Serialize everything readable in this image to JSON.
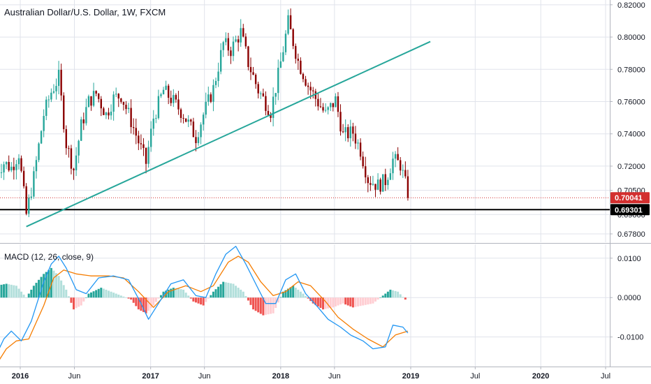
{
  "chart_data": [
    {
      "type": "candlestick",
      "title": "Australian Dollar/U.S. Dollar, 1W, FXCM",
      "ylim": [
        0.6754,
        0.8208
      ],
      "yticks": [
        {
          "value": 0.82,
          "label": "0.82000"
        },
        {
          "value": 0.8,
          "label": "0.80000"
        },
        {
          "value": 0.78,
          "label": "0.78000"
        },
        {
          "value": 0.76,
          "label": "0.76000"
        },
        {
          "value": 0.74,
          "label": "0.74000"
        },
        {
          "value": 0.72,
          "label": "0.72000"
        },
        {
          "value": 0.705,
          "label": "0.70500"
        },
        {
          "value": 0.69,
          "label": "0.69000"
        },
        {
          "value": 0.678,
          "label": "0.67800"
        }
      ],
      "xticks": [
        {
          "date": "2016-01-01",
          "label": "2016"
        },
        {
          "date": "2016-06-01",
          "label": "Jun"
        },
        {
          "date": "2017-01-01",
          "label": "2017"
        },
        {
          "date": "2017-06-01",
          "label": "Jun"
        },
        {
          "date": "2018-01-01",
          "label": "2018"
        },
        {
          "date": "2018-06-01",
          "label": "Jun"
        },
        {
          "date": "2019-01-01",
          "label": "2019"
        },
        {
          "date": "2019-07-01",
          "label": "Jul"
        },
        {
          "date": "2020-01-01",
          "label": "2020"
        },
        {
          "date": "2020-07-01",
          "label": "Jul"
        }
      ],
      "close_path": [
        [
          "2015-10-26",
          0.717
        ],
        [
          "2015-11-16",
          0.722
        ],
        [
          "2015-12-07",
          0.719
        ],
        [
          "2015-12-28",
          0.728
        ],
        [
          "2016-01-18",
          0.69
        ],
        [
          "2016-02-08",
          0.713
        ],
        [
          "2016-03-07",
          0.752
        ],
        [
          "2016-03-28",
          0.766
        ],
        [
          "2016-04-18",
          0.775
        ],
        [
          "2016-05-09",
          0.734
        ],
        [
          "2016-05-30",
          0.718
        ],
        [
          "2016-06-20",
          0.745
        ],
        [
          "2016-07-11",
          0.76
        ],
        [
          "2016-08-01",
          0.765
        ],
        [
          "2016-08-29",
          0.752
        ],
        [
          "2016-09-19",
          0.762
        ],
        [
          "2016-10-10",
          0.764
        ],
        [
          "2016-11-07",
          0.748
        ],
        [
          "2016-11-28",
          0.735
        ],
        [
          "2016-12-19",
          0.722
        ],
        [
          "2017-01-09",
          0.75
        ],
        [
          "2017-02-06",
          0.767
        ],
        [
          "2017-03-06",
          0.76
        ],
        [
          "2017-04-03",
          0.752
        ],
        [
          "2017-05-08",
          0.738
        ],
        [
          "2017-05-29",
          0.752
        ],
        [
          "2017-06-26",
          0.768
        ],
        [
          "2017-07-24",
          0.796
        ],
        [
          "2017-08-14",
          0.792
        ],
        [
          "2017-09-11",
          0.803
        ],
        [
          "2017-10-02",
          0.784
        ],
        [
          "2017-10-30",
          0.767
        ],
        [
          "2017-12-04",
          0.754
        ],
        [
          "2017-12-25",
          0.776
        ],
        [
          "2018-01-22",
          0.809
        ],
        [
          "2018-02-19",
          0.785
        ],
        [
          "2018-03-19",
          0.77
        ],
        [
          "2018-04-09",
          0.762
        ],
        [
          "2018-05-07",
          0.752
        ],
        [
          "2018-06-04",
          0.761
        ],
        [
          "2018-06-25",
          0.739
        ],
        [
          "2018-07-23",
          0.741
        ],
        [
          "2018-08-13",
          0.73
        ],
        [
          "2018-09-03",
          0.712
        ],
        [
          "2018-10-01",
          0.708
        ],
        [
          "2018-10-22",
          0.711
        ],
        [
          "2018-11-12",
          0.724
        ],
        [
          "2018-12-03",
          0.721
        ],
        [
          "2018-12-17",
          0.709
        ],
        [
          "2018-12-24",
          0.7004
        ]
      ],
      "series": [
        {
          "name": "trendline",
          "points": [
            [
              "2016-01-18",
              0.6825
            ],
            [
              "2019-02-25",
              0.7972
            ]
          ]
        }
      ],
      "horizontal_lines": [
        {
          "value": 0.70041,
          "label": "0.70041",
          "color": "#d32f2f",
          "style": "dotted"
        },
        {
          "value": 0.69301,
          "label": "0.69301",
          "color": "#000000",
          "style": "solid"
        }
      ],
      "colors": {
        "up": "#26a69a",
        "down": "#8b0000",
        "trend": "#26a69a",
        "grid": "#e0e3eb"
      }
    },
    {
      "type": "macd",
      "title": "MACD (12, 26, close, 9)",
      "ylim": [
        -0.0175,
        0.0135
      ],
      "yticks": [
        {
          "value": 0.01,
          "label": "0.0100"
        },
        {
          "value": 0.0,
          "label": "0.0000"
        },
        {
          "value": -0.01,
          "label": "-0.0100"
        }
      ],
      "series": [
        {
          "name": "MACD",
          "color": "#2196f3",
          "points": [
            [
              "2015-10-26",
              -0.0145
            ],
            [
              "2015-11-16",
              -0.0105
            ],
            [
              "2015-12-07",
              -0.0085
            ],
            [
              "2016-01-04",
              -0.011
            ],
            [
              "2016-02-01",
              -0.006
            ],
            [
              "2016-03-07",
              0.004
            ],
            [
              "2016-03-28",
              0.0085
            ],
            [
              "2016-04-18",
              0.0105
            ],
            [
              "2016-05-09",
              0.0075
            ],
            [
              "2016-06-06",
              0.002
            ],
            [
              "2016-07-04",
              0.001
            ],
            [
              "2016-08-08",
              0.005
            ],
            [
              "2016-09-19",
              0.0055
            ],
            [
              "2016-10-31",
              0.0045
            ],
            [
              "2016-12-05",
              -0.0015
            ],
            [
              "2016-12-26",
              -0.0055
            ],
            [
              "2017-01-23",
              -0.0015
            ],
            [
              "2017-02-27",
              0.0035
            ],
            [
              "2017-04-03",
              0.0045
            ],
            [
              "2017-05-08",
              0.0005
            ],
            [
              "2017-06-05",
              0.0
            ],
            [
              "2017-07-03",
              0.006
            ],
            [
              "2017-07-31",
              0.011
            ],
            [
              "2017-08-28",
              0.013
            ],
            [
              "2017-09-25",
              0.0085
            ],
            [
              "2017-10-23",
              0.0035
            ],
            [
              "2017-11-20",
              -0.0015
            ],
            [
              "2017-12-18",
              -0.0015
            ],
            [
              "2018-01-15",
              0.0045
            ],
            [
              "2018-02-12",
              0.006
            ],
            [
              "2018-03-12",
              0.001
            ],
            [
              "2018-04-16",
              -0.0025
            ],
            [
              "2018-05-14",
              -0.0055
            ],
            [
              "2018-06-18",
              -0.0075
            ],
            [
              "2018-07-16",
              -0.0095
            ],
            [
              "2018-08-20",
              -0.011
            ],
            [
              "2018-09-17",
              -0.013
            ],
            [
              "2018-10-22",
              -0.0125
            ],
            [
              "2018-11-12",
              -0.007
            ],
            [
              "2018-12-10",
              -0.0075
            ],
            [
              "2018-12-24",
              -0.009
            ]
          ]
        },
        {
          "name": "Signal",
          "color": "#f57c00",
          "points": [
            [
              "2015-10-26",
              -0.017
            ],
            [
              "2015-11-23",
              -0.013
            ],
            [
              "2015-12-21",
              -0.011
            ],
            [
              "2016-01-25",
              -0.0105
            ],
            [
              "2016-03-07",
              -0.002
            ],
            [
              "2016-04-04",
              0.005
            ],
            [
              "2016-05-02",
              0.007
            ],
            [
              "2016-06-06",
              0.006
            ],
            [
              "2016-07-18",
              0.0055
            ],
            [
              "2016-09-05",
              0.0055
            ],
            [
              "2016-10-17",
              0.005
            ],
            [
              "2016-11-28",
              0.0015
            ],
            [
              "2017-01-09",
              -0.0025
            ],
            [
              "2017-02-20",
              0.0015
            ],
            [
              "2017-04-10",
              0.003
            ],
            [
              "2017-05-22",
              0.0015
            ],
            [
              "2017-06-26",
              0.003
            ],
            [
              "2017-08-07",
              0.009
            ],
            [
              "2017-09-04",
              0.0105
            ],
            [
              "2017-10-02",
              0.009
            ],
            [
              "2017-11-06",
              0.004
            ],
            [
              "2017-12-11",
              0.0005
            ],
            [
              "2018-01-15",
              0.0015
            ],
            [
              "2018-02-19",
              0.004
            ],
            [
              "2018-03-26",
              0.003
            ],
            [
              "2018-05-07",
              -0.001
            ],
            [
              "2018-06-11",
              -0.005
            ],
            [
              "2018-07-23",
              -0.008
            ],
            [
              "2018-09-03",
              -0.0105
            ],
            [
              "2018-10-15",
              -0.0125
            ],
            [
              "2018-11-19",
              -0.0095
            ],
            [
              "2018-12-24",
              -0.0085
            ]
          ]
        },
        {
          "name": "Histogram",
          "type": "bar",
          "points": [
            [
              "2015-10-26",
              0.003
            ],
            [
              "2015-11-23",
              0.0035
            ],
            [
              "2015-12-21",
              0.003
            ],
            [
              "2016-01-18",
              0.0
            ],
            [
              "2016-02-08",
              0.003
            ],
            [
              "2016-03-07",
              0.006
            ],
            [
              "2016-03-28",
              0.0075
            ],
            [
              "2016-04-18",
              0.0055
            ],
            [
              "2016-05-09",
              0.002
            ],
            [
              "2016-05-30",
              -0.003
            ],
            [
              "2016-06-20",
              -0.002
            ],
            [
              "2016-07-11",
              0.001
            ],
            [
              "2016-08-15",
              0.0025
            ],
            [
              "2016-09-12",
              0.0015
            ],
            [
              "2016-10-10",
              0.0005
            ],
            [
              "2016-11-07",
              -0.0005
            ],
            [
              "2016-11-28",
              -0.003
            ],
            [
              "2016-12-19",
              -0.004
            ],
            [
              "2017-01-09",
              -0.002
            ],
            [
              "2017-02-06",
              0.0015
            ],
            [
              "2017-03-06",
              0.0025
            ],
            [
              "2017-04-03",
              0.002
            ],
            [
              "2017-05-01",
              -0.001
            ],
            [
              "2017-05-29",
              -0.002
            ],
            [
              "2017-06-26",
              0.0015
            ],
            [
              "2017-07-24",
              0.004
            ],
            [
              "2017-08-21",
              0.0035
            ],
            [
              "2017-09-18",
              0.0015
            ],
            [
              "2017-10-16",
              -0.003
            ],
            [
              "2017-11-13",
              -0.0045
            ],
            [
              "2017-12-11",
              -0.004
            ],
            [
              "2018-01-08",
              0.0015
            ],
            [
              "2018-02-05",
              0.003
            ],
            [
              "2018-03-05",
              0.001
            ],
            [
              "2018-04-02",
              -0.0015
            ],
            [
              "2018-04-30",
              -0.003
            ],
            [
              "2018-05-28",
              -0.0025
            ],
            [
              "2018-06-25",
              -0.0015
            ],
            [
              "2018-07-23",
              -0.0025
            ],
            [
              "2018-08-20",
              -0.002
            ],
            [
              "2018-09-17",
              -0.0015
            ],
            [
              "2018-10-15",
              0.0005
            ],
            [
              "2018-11-05",
              0.002
            ],
            [
              "2018-11-26",
              0.0015
            ],
            [
              "2018-12-17",
              -0.0005
            ]
          ]
        }
      ],
      "colors": {
        "hist_up_strong": "#26a69a",
        "hist_up_weak": "#b2dfdb",
        "hist_down_strong": "#ef5350",
        "hist_down_weak": "#ffcdd2"
      }
    }
  ]
}
